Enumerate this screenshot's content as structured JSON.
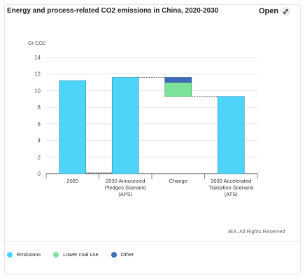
{
  "header": {
    "title": "Energy and process-related CO2 emissions in China, 2020-2030",
    "open_label": "Open",
    "open_icon": "expand-icon"
  },
  "credit": "IEA. All Rights Reserved",
  "colors": {
    "emissions": "#4dd4f8",
    "lower_coal_use": "#7de39a",
    "other": "#3f6cb8"
  },
  "chart_data": {
    "type": "bar",
    "subtype": "waterfall",
    "ylabel": "Gt CO2",
    "ylim": [
      0,
      14
    ],
    "yticks": [
      0,
      2,
      4,
      6,
      8,
      10,
      12,
      14
    ],
    "grid": true,
    "legend_position": "bottom-left",
    "categories": [
      "2020",
      "2030 Announced Pledges Scenario (APS)",
      "Change",
      "2030 Accelerated Transition Scenario (ATS)"
    ],
    "category_lines": [
      [
        "2020"
      ],
      [
        "2030 Announced",
        "Pledges Scenario",
        "(APS)"
      ],
      [
        "Change"
      ],
      [
        "2030 Accelerated",
        "Transition Scenario",
        "(ATS)"
      ]
    ],
    "series": [
      {
        "name": "Emissions",
        "values": [
          11.2,
          11.6,
          null,
          9.3
        ]
      },
      {
        "name": "Lower coal use",
        "values": [
          null,
          null,
          1.7,
          null
        ]
      },
      {
        "name": "Other",
        "values": [
          null,
          null,
          0.6,
          null
        ]
      }
    ],
    "change_range": [
      9.3,
      11.6
    ]
  }
}
